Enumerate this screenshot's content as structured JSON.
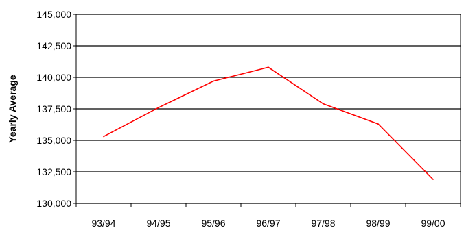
{
  "chart_data": {
    "type": "line",
    "title": "",
    "xlabel": "",
    "ylabel": "Yearly Average",
    "categories": [
      "93/94",
      "94/95",
      "95/96",
      "96/97",
      "97/98",
      "98/99",
      "99/00"
    ],
    "series": [
      {
        "values": [
          135300,
          137600,
          139700,
          140800,
          137900,
          136300,
          131900
        ],
        "color": "#ff0000"
      }
    ],
    "ylim": [
      130000,
      145000
    ],
    "yticks": [
      130000,
      132500,
      135000,
      137500,
      140000,
      142500,
      145000
    ],
    "ytick_labels": [
      "130,000",
      "132,500",
      "135,000",
      "137,500",
      "140,000",
      "142,500",
      "145,000"
    ],
    "grid": "horizontal",
    "legend": "none"
  }
}
